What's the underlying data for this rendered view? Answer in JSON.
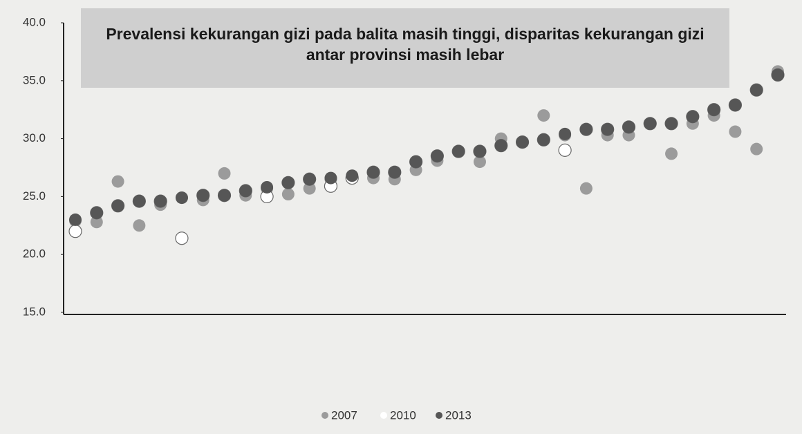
{
  "chart_data": {
    "type": "scatter",
    "title": "Prevalensi kekurangan gizi pada balita masih tinggi, disparitas kekurangan gizi antar provinsi masih lebar",
    "categories": [
      null,
      null,
      null,
      null,
      null,
      null,
      null,
      null,
      null,
      null,
      null,
      null,
      null,
      null,
      null,
      null,
      null,
      null,
      null,
      null,
      null,
      null,
      null,
      null,
      null,
      null,
      null,
      null,
      null,
      null,
      null,
      null,
      null,
      null
    ],
    "series": [
      {
        "name": "2007",
        "color": "#9b9b9b",
        "values": [
          22.9,
          22.8,
          26.3,
          22.5,
          24.3,
          24.9,
          24.7,
          27.0,
          25.1,
          25.7,
          25.2,
          25.7,
          26.5,
          26.7,
          26.6,
          26.5,
          27.3,
          28.1,
          28.9,
          28.0,
          30.0,
          29.7,
          32.0,
          30.3,
          25.7,
          30.3,
          30.3,
          31.3,
          28.7,
          31.3,
          32.0,
          30.6,
          29.1,
          35.8
        ]
      },
      {
        "name": "2010",
        "color": "#ffffff",
        "values": [
          22.0,
          23.6,
          24.2,
          24.6,
          24.6,
          21.4,
          25.1,
          25.1,
          25.5,
          25.0,
          26.2,
          26.5,
          25.9,
          26.6,
          27.1,
          27.1,
          28.0,
          28.5,
          28.9,
          28.9,
          29.4,
          29.7,
          29.9,
          29.0,
          30.8,
          30.8,
          31.0,
          31.3,
          31.3,
          31.9,
          32.5,
          32.9,
          34.2,
          35.5
        ]
      },
      {
        "name": "2013",
        "color": "#565656",
        "values": [
          23.0,
          23.6,
          24.2,
          24.6,
          24.6,
          24.9,
          25.1,
          25.1,
          25.5,
          25.8,
          26.2,
          26.5,
          26.6,
          26.8,
          27.1,
          27.1,
          28.0,
          28.5,
          28.9,
          28.9,
          29.4,
          29.7,
          29.9,
          30.4,
          30.8,
          30.8,
          31.0,
          31.3,
          31.3,
          31.9,
          32.5,
          32.9,
          34.2,
          35.5
        ]
      }
    ],
    "ylim": [
      15,
      40
    ],
    "yticks": [
      {
        "value": 15,
        "label": "15.0"
      },
      {
        "value": 20,
        "label": "20.0"
      },
      {
        "value": 25,
        "label": "25.0"
      },
      {
        "value": 30,
        "label": "30.0"
      },
      {
        "value": 35,
        "label": "35.0"
      },
      {
        "value": 40,
        "label": "40.0"
      }
    ],
    "grid": false,
    "legend": "bottom"
  }
}
